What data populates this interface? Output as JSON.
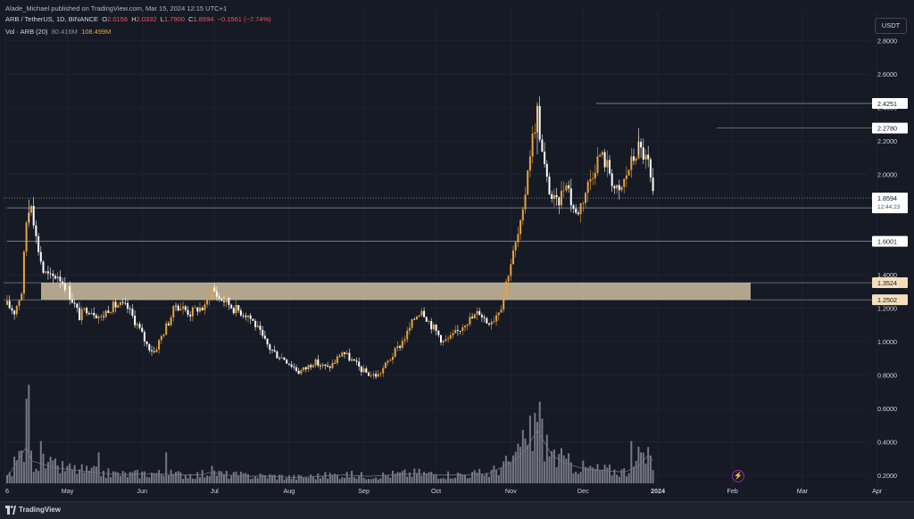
{
  "header": {
    "publisher": "Alade_Michael published on TradingView.com, Mar 15, 2024 12:15 UTC+1",
    "symbol": "ARB / TetherUS, 1D, BINANCE",
    "o_label": "O",
    "open": "2.0156",
    "h_label": "H",
    "high": "2.0332",
    "l_label": "L",
    "low": "1.7900",
    "c_label": "C",
    "close": "1.8594",
    "change": "−0.1561 (−7.74%)",
    "vol_label": "Vol · ARB (20)",
    "vol_ma": "80.416M",
    "vol_value": "108.499M"
  },
  "currency": "USDT",
  "brand": "TradingView",
  "colors": {
    "background": "#161a25",
    "candle_up": "#e8a33a",
    "candle_down": "#ffffff",
    "zone": "#d6c4a4",
    "text": "#d1d4dc",
    "muted": "#8b8f99",
    "volume": "#9598a1"
  },
  "chart_data": {
    "type": "candlestick",
    "x_ticks": [
      "6",
      "May",
      "Jun",
      "Jul",
      "Aug",
      "Sep",
      "Oct",
      "Nov",
      "Dec",
      "2024",
      "Feb",
      "Mar",
      "Apr",
      "May"
    ],
    "y_ticks": [
      "0.2000",
      "0.4000",
      "0.6000",
      "0.8000",
      "1.0000",
      "1.2000",
      "1.4000",
      "1.6000",
      "1.8000",
      "2.0000",
      "2.2000",
      "2.4000",
      "2.6000",
      "2.8000"
    ],
    "price_range": [
      0.12,
      2.98
    ],
    "last_price": "1.8594",
    "countdown": "12:44:23",
    "levels": [
      {
        "label": "2.4251",
        "value": 2.4251
      },
      {
        "label": "2.2780",
        "value": 2.278
      },
      {
        "label": "1.8000",
        "value": 1.8
      },
      {
        "label": "1.6001",
        "value": 1.6001
      }
    ],
    "zone": {
      "top_label": "1.3524",
      "top": 1.3524,
      "bottom_label": "1.2502",
      "bottom": 1.2502
    },
    "price_path": [
      [
        0,
        1.22
      ],
      [
        3,
        1.18
      ],
      [
        6,
        1.3
      ],
      [
        8,
        1.72
      ],
      [
        10,
        1.85
      ],
      [
        12,
        1.62
      ],
      [
        15,
        1.42
      ],
      [
        18,
        1.38
      ],
      [
        21,
        1.4
      ],
      [
        24,
        1.34
      ],
      [
        27,
        1.25
      ],
      [
        30,
        1.15
      ],
      [
        33,
        1.2
      ],
      [
        36,
        1.18
      ],
      [
        39,
        1.14
      ],
      [
        42,
        1.2
      ],
      [
        46,
        1.22
      ],
      [
        50,
        1.2
      ],
      [
        54,
        1.1
      ],
      [
        58,
        0.98
      ],
      [
        61,
        0.94
      ],
      [
        64,
        1.03
      ],
      [
        67,
        1.12
      ],
      [
        70,
        1.22
      ],
      [
        73,
        1.2
      ],
      [
        76,
        1.17
      ],
      [
        79,
        1.2
      ],
      [
        82,
        1.2
      ],
      [
        85,
        1.32
      ],
      [
        88,
        1.26
      ],
      [
        91,
        1.24
      ],
      [
        94,
        1.2
      ],
      [
        97,
        1.18
      ],
      [
        100,
        1.16
      ],
      [
        103,
        1.1
      ],
      [
        106,
        1.02
      ],
      [
        109,
        0.96
      ],
      [
        112,
        0.92
      ],
      [
        115,
        0.9
      ],
      [
        118,
        0.86
      ],
      [
        121,
        0.82
      ],
      [
        124,
        0.84
      ],
      [
        127,
        0.88
      ],
      [
        130,
        0.86
      ],
      [
        133,
        0.84
      ],
      [
        136,
        0.88
      ],
      [
        139,
        0.94
      ],
      [
        142,
        0.9
      ],
      [
        145,
        0.86
      ],
      [
        148,
        0.82
      ],
      [
        151,
        0.8
      ],
      [
        154,
        0.8
      ],
      [
        157,
        0.86
      ],
      [
        160,
        0.92
      ],
      [
        163,
        0.98
      ],
      [
        166,
        1.05
      ],
      [
        169,
        1.14
      ],
      [
        172,
        1.2
      ],
      [
        175,
        1.12
      ],
      [
        178,
        1.06
      ],
      [
        181,
        1.0
      ],
      [
        184,
        1.02
      ],
      [
        187,
        1.06
      ],
      [
        190,
        1.12
      ],
      [
        193,
        1.14
      ],
      [
        196,
        1.18
      ],
      [
        199,
        1.12
      ],
      [
        202,
        1.14
      ],
      [
        205,
        1.22
      ],
      [
        208,
        1.42
      ],
      [
        211,
        1.58
      ],
      [
        214,
        1.75
      ],
      [
        216,
        2.05
      ],
      [
        218,
        2.22
      ],
      [
        220,
        2.38
      ],
      [
        222,
        2.12
      ],
      [
        224,
        1.96
      ],
      [
        226,
        1.86
      ],
      [
        228,
        1.82
      ],
      [
        230,
        1.88
      ],
      [
        232,
        1.98
      ],
      [
        234,
        1.84
      ],
      [
        236,
        1.76
      ],
      [
        238,
        1.82
      ],
      [
        240,
        1.9
      ],
      [
        242,
        1.98
      ],
      [
        244,
        2.06
      ],
      [
        246,
        2.12
      ],
      [
        248,
        2.08
      ],
      [
        250,
        2.02
      ],
      [
        252,
        1.92
      ],
      [
        254,
        1.88
      ],
      [
        256,
        1.96
      ],
      [
        258,
        2.04
      ],
      [
        260,
        2.1
      ],
      [
        262,
        2.16
      ],
      [
        264,
        2.12
      ],
      [
        266,
        2.06
      ],
      [
        268,
        1.86
      ]
    ],
    "volume_ylim": [
      0,
      0.95
    ],
    "volume_path": [
      [
        0,
        0.04
      ],
      [
        8,
        0.26
      ],
      [
        10,
        0.16
      ],
      [
        20,
        0.11
      ],
      [
        30,
        0.09
      ],
      [
        40,
        0.07
      ],
      [
        50,
        0.06
      ],
      [
        60,
        0.07
      ],
      [
        70,
        0.06
      ],
      [
        80,
        0.06
      ],
      [
        85,
        0.08
      ],
      [
        90,
        0.06
      ],
      [
        100,
        0.05
      ],
      [
        110,
        0.05
      ],
      [
        120,
        0.04
      ],
      [
        130,
        0.05
      ],
      [
        140,
        0.06
      ],
      [
        150,
        0.05
      ],
      [
        160,
        0.06
      ],
      [
        170,
        0.07
      ],
      [
        180,
        0.06
      ],
      [
        190,
        0.06
      ],
      [
        200,
        0.07
      ],
      [
        206,
        0.12
      ],
      [
        212,
        0.18
      ],
      [
        216,
        0.26
      ],
      [
        220,
        0.38
      ],
      [
        226,
        0.2
      ],
      [
        232,
        0.14
      ],
      [
        240,
        0.1
      ],
      [
        248,
        0.09
      ],
      [
        256,
        0.08
      ],
      [
        262,
        0.12
      ],
      [
        266,
        0.2
      ],
      [
        268,
        0.16
      ]
    ],
    "volume_spikes": [
      [
        8,
        0.6
      ],
      [
        9,
        0.7
      ],
      [
        14,
        0.3
      ],
      [
        38,
        0.22
      ],
      [
        66,
        0.22
      ],
      [
        214,
        0.38
      ],
      [
        217,
        0.48
      ],
      [
        219,
        0.5
      ],
      [
        221,
        0.58
      ],
      [
        222,
        0.46
      ],
      [
        259,
        0.3
      ],
      [
        262,
        0.26
      ]
    ]
  }
}
